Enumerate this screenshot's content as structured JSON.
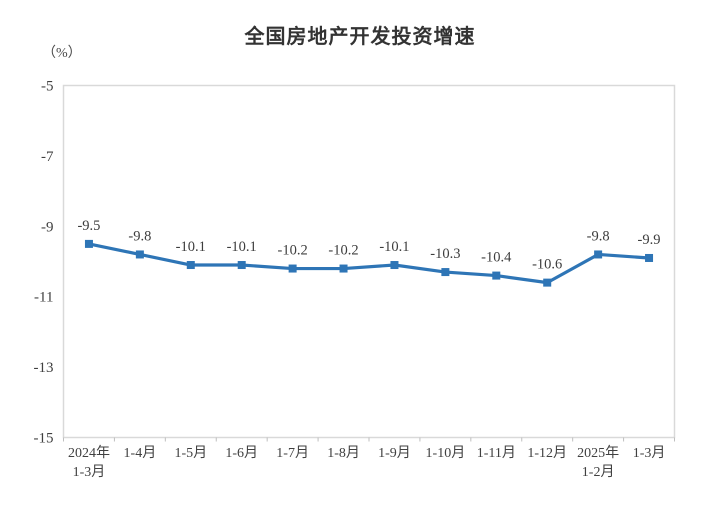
{
  "chart_data": {
    "type": "line",
    "title": "全国房地产开发投资增速",
    "unit_label": "（%）",
    "categories": [
      [
        "2024年",
        "1-3月"
      ],
      [
        "1-4月"
      ],
      [
        "1-5月"
      ],
      [
        "1-6月"
      ],
      [
        "1-7月"
      ],
      [
        "1-8月"
      ],
      [
        "1-9月"
      ],
      [
        "1-10月"
      ],
      [
        "1-11月"
      ],
      [
        "1-12月"
      ],
      [
        "2025年",
        "1-2月"
      ],
      [
        "1-3月"
      ]
    ],
    "values": [
      -9.5,
      -9.8,
      -10.1,
      -10.1,
      -10.2,
      -10.2,
      -10.1,
      -10.3,
      -10.4,
      -10.6,
      -9.8,
      -9.9
    ],
    "point_labels": [
      "-9.5",
      "-9.8",
      "-10.1",
      "-10.1",
      "-10.2",
      "-10.2",
      "-10.1",
      "-10.3",
      "-10.4",
      "-10.6",
      "-9.8",
      "-9.9"
    ],
    "yticks": [
      -5,
      -7,
      -9,
      -11,
      -13,
      -15
    ],
    "ytick_labels": [
      "-5",
      "-7",
      "-9",
      "-11",
      "-13",
      "-15"
    ],
    "ylim": [
      -15,
      -5
    ],
    "grid": false,
    "legend": false,
    "colors": {
      "line": "#2E75B6",
      "marker": "#2E75B6",
      "plot_border": "#D9D9D9",
      "axis_tick": "#BFBFBF",
      "tick_text": "#404040",
      "data_label_text": "#3d3d3d",
      "title_text": "#333333"
    }
  }
}
